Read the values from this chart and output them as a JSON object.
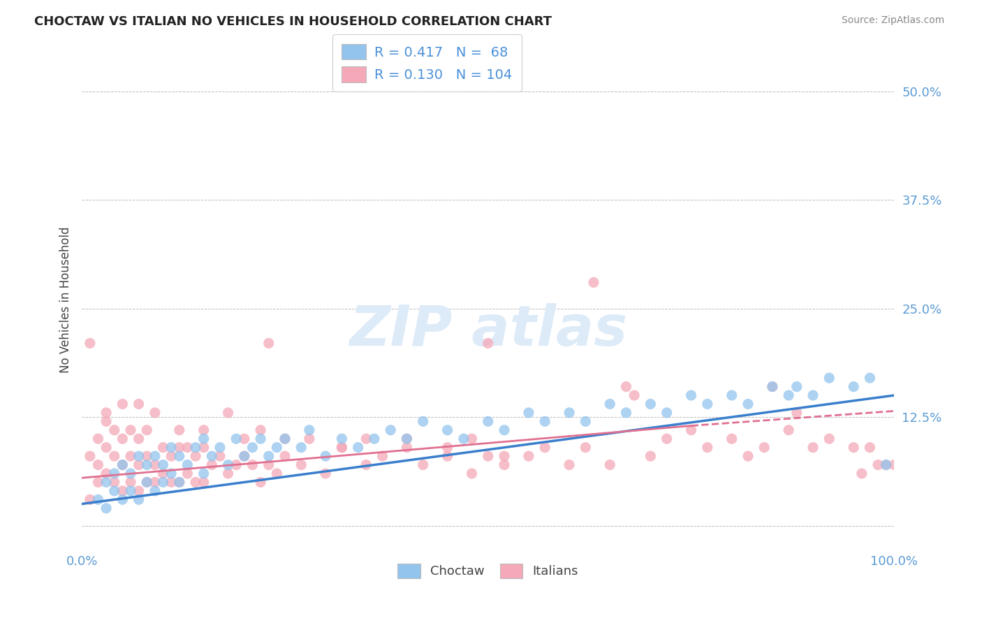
{
  "title": "CHOCTAW VS ITALIAN NO VEHICLES IN HOUSEHOLD CORRELATION CHART",
  "source": "Source: ZipAtlas.com",
  "ylabel": "No Vehicles in Household",
  "xmin": 0.0,
  "xmax": 100.0,
  "ymin": -3.0,
  "ymax": 55.0,
  "yticks": [
    0.0,
    12.5,
    25.0,
    37.5,
    50.0
  ],
  "ytick_labels": [
    "",
    "12.5%",
    "25.0%",
    "37.5%",
    "50.0%"
  ],
  "legend_blue_label": "Choctaw",
  "legend_pink_label": "Italians",
  "R_blue": 0.417,
  "N_blue": 68,
  "R_pink": 0.13,
  "N_pink": 104,
  "color_blue": "#93C4ED",
  "color_pink": "#F4A8B8",
  "trendline_blue": "#3A7FCC",
  "trendline_pink": "#E07090",
  "watermark_color": "#DDEAF8",
  "grid_color": "#BBBBBB",
  "blue_scatter_x": [
    2,
    3,
    3,
    4,
    4,
    5,
    5,
    6,
    6,
    7,
    7,
    8,
    8,
    9,
    9,
    10,
    10,
    11,
    11,
    12,
    12,
    13,
    14,
    15,
    15,
    16,
    17,
    18,
    19,
    20,
    21,
    22,
    23,
    24,
    25,
    27,
    28,
    30,
    32,
    34,
    36,
    38,
    40,
    42,
    45,
    47,
    50,
    52,
    55,
    57,
    60,
    62,
    65,
    67,
    70,
    72,
    75,
    77,
    80,
    82,
    85,
    87,
    88,
    90,
    92,
    95,
    97,
    99
  ],
  "blue_scatter_y": [
    3,
    2,
    5,
    4,
    6,
    3,
    7,
    4,
    6,
    3,
    8,
    5,
    7,
    4,
    8,
    5,
    7,
    6,
    9,
    5,
    8,
    7,
    9,
    6,
    10,
    8,
    9,
    7,
    10,
    8,
    9,
    10,
    8,
    9,
    10,
    9,
    11,
    8,
    10,
    9,
    10,
    11,
    10,
    12,
    11,
    10,
    12,
    11,
    13,
    12,
    13,
    12,
    14,
    13,
    14,
    13,
    15,
    14,
    15,
    14,
    16,
    15,
    16,
    15,
    17,
    16,
    17,
    7
  ],
  "pink_scatter_x": [
    1,
    1,
    2,
    2,
    2,
    3,
    3,
    3,
    4,
    4,
    4,
    5,
    5,
    5,
    6,
    6,
    6,
    7,
    7,
    7,
    8,
    8,
    8,
    9,
    9,
    10,
    10,
    11,
    11,
    12,
    12,
    13,
    13,
    14,
    14,
    15,
    15,
    16,
    17,
    18,
    19,
    20,
    21,
    22,
    23,
    24,
    25,
    27,
    30,
    32,
    35,
    37,
    40,
    42,
    45,
    48,
    50,
    52,
    55,
    57,
    60,
    62,
    63,
    65,
    67,
    68,
    70,
    72,
    75,
    77,
    80,
    82,
    84,
    85,
    87,
    88,
    90,
    92,
    95,
    96,
    97,
    98,
    99,
    100,
    50,
    23,
    1,
    3,
    5,
    7,
    9,
    12,
    15,
    18,
    20,
    22,
    25,
    28,
    32,
    35,
    40,
    45,
    48,
    52
  ],
  "pink_scatter_y": [
    8,
    3,
    5,
    7,
    10,
    6,
    9,
    12,
    5,
    8,
    11,
    4,
    7,
    10,
    5,
    8,
    11,
    4,
    7,
    10,
    5,
    8,
    11,
    5,
    7,
    6,
    9,
    5,
    8,
    5,
    9,
    6,
    9,
    5,
    8,
    5,
    9,
    7,
    8,
    6,
    7,
    8,
    7,
    5,
    7,
    6,
    8,
    7,
    6,
    9,
    7,
    8,
    9,
    7,
    8,
    6,
    8,
    7,
    8,
    9,
    7,
    9,
    28,
    7,
    16,
    15,
    8,
    10,
    11,
    9,
    10,
    8,
    9,
    16,
    11,
    13,
    9,
    10,
    9,
    6,
    9,
    7,
    7,
    7,
    21,
    21,
    21,
    13,
    14,
    14,
    13,
    11,
    11,
    13,
    10,
    11,
    10,
    10,
    9,
    10,
    10,
    9,
    10,
    8
  ],
  "blue_trendline": [
    [
      0,
      2.5
    ],
    [
      100,
      15.0
    ]
  ],
  "pink_trendline": [
    [
      0,
      5.5
    ],
    [
      75,
      11.5
    ]
  ],
  "pink_trendline_ext": [
    [
      75,
      11.5
    ],
    [
      100,
      13.2
    ]
  ]
}
